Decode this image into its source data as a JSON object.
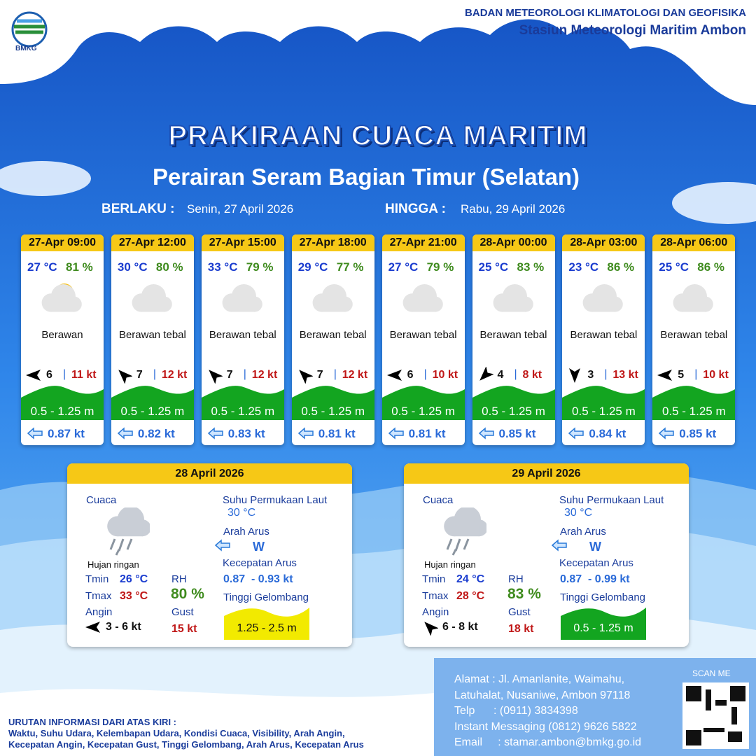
{
  "header": {
    "logo_text": "BMKG",
    "agency": "BADAN METEOROLOGI KLIMATOLOGI DAN GEOFISIKA",
    "station": "Stasiun Meteorologi Maritim Ambon"
  },
  "title": "PRAKIRAAN CUACA MARITIM",
  "subtitle": "Perairan Seram Bagian Timur (Selatan)",
  "validity": {
    "from_label": "BERLAKU :",
    "from": "Senin, 27 April 2026",
    "to_label": "HINGGA :",
    "to": "Rabu, 29 April 2026"
  },
  "periods": [
    {
      "time": "27-Apr 09:00",
      "temp": "27 °C",
      "rh": "81 %",
      "weather": "Berawan",
      "wind_speed": "6",
      "gust": "11 kt",
      "wave": "0.5 - 1.25 m",
      "current": "0.87 kt"
    },
    {
      "time": "27-Apr 12:00",
      "temp": "30 °C",
      "rh": "80 %",
      "weather": "Berawan tebal",
      "wind_speed": "7",
      "gust": "12 kt",
      "wave": "0.5 - 1.25 m",
      "current": "0.82 kt"
    },
    {
      "time": "27-Apr 15:00",
      "temp": "33 °C",
      "rh": "79 %",
      "weather": "Berawan tebal",
      "wind_speed": "7",
      "gust": "12 kt",
      "wave": "0.5 - 1.25 m",
      "current": "0.83 kt"
    },
    {
      "time": "27-Apr 18:00",
      "temp": "29 °C",
      "rh": "77 %",
      "weather": "Berawan tebal",
      "wind_speed": "7",
      "gust": "12 kt",
      "wave": "0.5 - 1.25 m",
      "current": "0.81 kt"
    },
    {
      "time": "27-Apr 21:00",
      "temp": "27 °C",
      "rh": "79 %",
      "weather": "Berawan tebal",
      "wind_speed": "6",
      "gust": "10 kt",
      "wave": "0.5 - 1.25 m",
      "current": "0.81 kt"
    },
    {
      "time": "28-Apr 00:00",
      "temp": "25 °C",
      "rh": "83 %",
      "weather": "Berawan tebal",
      "wind_speed": "4",
      "gust": "8 kt",
      "wave": "0.5 - 1.25 m",
      "current": "0.85 kt"
    },
    {
      "time": "28-Apr 03:00",
      "temp": "23 °C",
      "rh": "86 %",
      "weather": "Berawan tebal",
      "wind_speed": "3",
      "gust": "13 kt",
      "wave": "0.5 - 1.25 m",
      "current": "0.84 kt"
    },
    {
      "time": "28-Apr 06:00",
      "temp": "25 °C",
      "rh": "86 %",
      "weather": "Berawan tebal",
      "wind_speed": "5",
      "gust": "10 kt",
      "wave": "0.5 - 1.25 m",
      "current": "0.85 kt"
    }
  ],
  "daily": [
    {
      "date": "28 April 2026",
      "weather_label": "Cuaca",
      "weather": "Hujan ringan",
      "tmin_label": "Tmin",
      "tmin": "26 °C",
      "tmax_label": "Tmax",
      "tmax": "33 °C",
      "wind_label": "Angin",
      "wind": "3 - 6 kt",
      "rh_label": "RH",
      "rh": "80 %",
      "gust_label": "Gust",
      "gust": "15 kt",
      "sst_label": "Suhu Permukaan Laut",
      "sst": "30 °C",
      "current_dir_label": "Arah Arus",
      "current_dir": "W",
      "current_speed_label": "Kecepatan Arus",
      "current_speed": "0.87  - 0.93 kt",
      "wave_label": "Tinggi Gelombang",
      "wave": "1.25 - 2.5 m",
      "wave_color": "#f2ea00"
    },
    {
      "date": "29 April 2026",
      "weather_label": "Cuaca",
      "weather": "Hujan ringan",
      "tmin_label": "Tmin",
      "tmin": "24 °C",
      "tmax_label": "Tmax",
      "tmax": "28 °C",
      "wind_label": "Angin",
      "wind": "6 - 8 kt",
      "rh_label": "RH",
      "rh": "83 %",
      "gust_label": "Gust",
      "gust": "18 kt",
      "sst_label": "Suhu Permukaan Laut",
      "sst": "30 °C",
      "current_dir_label": "Arah Arus",
      "current_dir": "W",
      "current_speed_label": "Kecepatan Arus",
      "current_speed": "0.87  - 0.99 kt",
      "wave_label": "Tinggi Gelombang",
      "wave": "0.5 - 1.25 m",
      "wave_color": "#13a520"
    }
  ],
  "footer": {
    "address": [
      "Alamat : Jl. Amanlanite, Waimahu,",
      "Latuhalat, Nusaniwe, Ambon 97118",
      "Telp      : (0911) 3834398",
      "Instant Messaging (0812) 9626 5822",
      "Email     : stamar.ambon@bmkg.go.id"
    ],
    "scan_me": "SCAN ME",
    "note_title": "URUTAN INFORMASI DARI ATAS KIRI :",
    "note_lines": [
      "Waktu, Suhu Udara, Kelembapan Udara, Kondisi Cuaca, Visibility, Arah Angin,",
      "Kecepatan Angin, Kecepatan Gust, Tinggi Gelombang, Arah Arus, Kecepatan Arus"
    ]
  }
}
